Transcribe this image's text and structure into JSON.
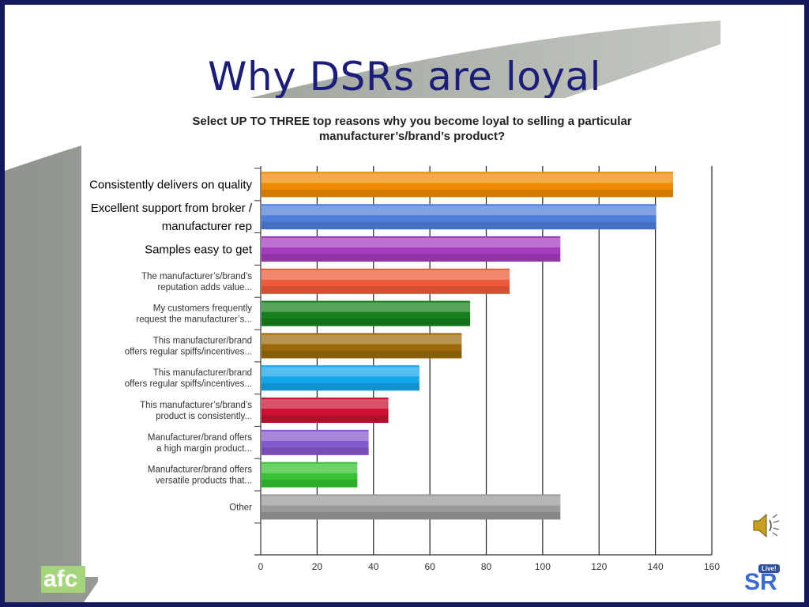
{
  "slide": {
    "title": "Why DSRs are loyal",
    "chart_subtitle_line1": "Select UP TO THREE top reasons why you become loyal to selling a particular",
    "chart_subtitle_line2": "manufacturer’s/brand’s product?",
    "logo_left_text": "afc",
    "logo_right_text": "SR",
    "logo_right_badge": "Live!",
    "speaker_icon": "speaker-icon"
  },
  "chart_data": {
    "type": "bar",
    "orientation": "horizontal",
    "title": "Select UP TO THREE top reasons why you become loyal to selling a particular manufacturer’s/brand’s product?",
    "xlim": [
      0,
      160
    ],
    "xticks": [
      0,
      20,
      40,
      60,
      80,
      100,
      120,
      140,
      160
    ],
    "grid": true,
    "categories": [
      {
        "lines": [
          "Consistently delivers on quality"
        ],
        "large": true
      },
      {
        "lines": [
          "Excellent support from broker /",
          "manufacturer rep"
        ],
        "large": true
      },
      {
        "lines": [
          "Samples easy to get"
        ],
        "large": true
      },
      {
        "lines": [
          "The manufacturer’s/brand’s",
          "reputation adds value..."
        ],
        "large": false
      },
      {
        "lines": [
          "My customers frequently",
          "request the manufacturer’s..."
        ],
        "large": false
      },
      {
        "lines": [
          "This manufacturer/brand",
          "offers regular spiffs/incentives..."
        ],
        "large": false
      },
      {
        "lines": [
          "This manufacturer/brand",
          "offers regular spiffs/incentives..."
        ],
        "large": false
      },
      {
        "lines": [
          "This manufacturer’s/brand’s",
          "product is consistently..."
        ],
        "large": false
      },
      {
        "lines": [
          "Manufacturer/brand offers",
          "a high margin product..."
        ],
        "large": false
      },
      {
        "lines": [
          "Manufacturer/brand offers",
          "versatile products that..."
        ],
        "large": false
      },
      {
        "lines": [
          "Other"
        ],
        "large": false
      }
    ],
    "values": [
      146,
      140,
      106,
      88,
      74,
      71,
      56,
      45,
      38,
      34,
      106
    ],
    "colors": [
      "#f08a00",
      "#4f7fdc",
      "#a43cc0",
      "#ef5a3a",
      "#16801e",
      "#9a6a0a",
      "#14a6ea",
      "#cc1030",
      "#8459cc",
      "#36c232",
      "#9a9a9a"
    ]
  }
}
